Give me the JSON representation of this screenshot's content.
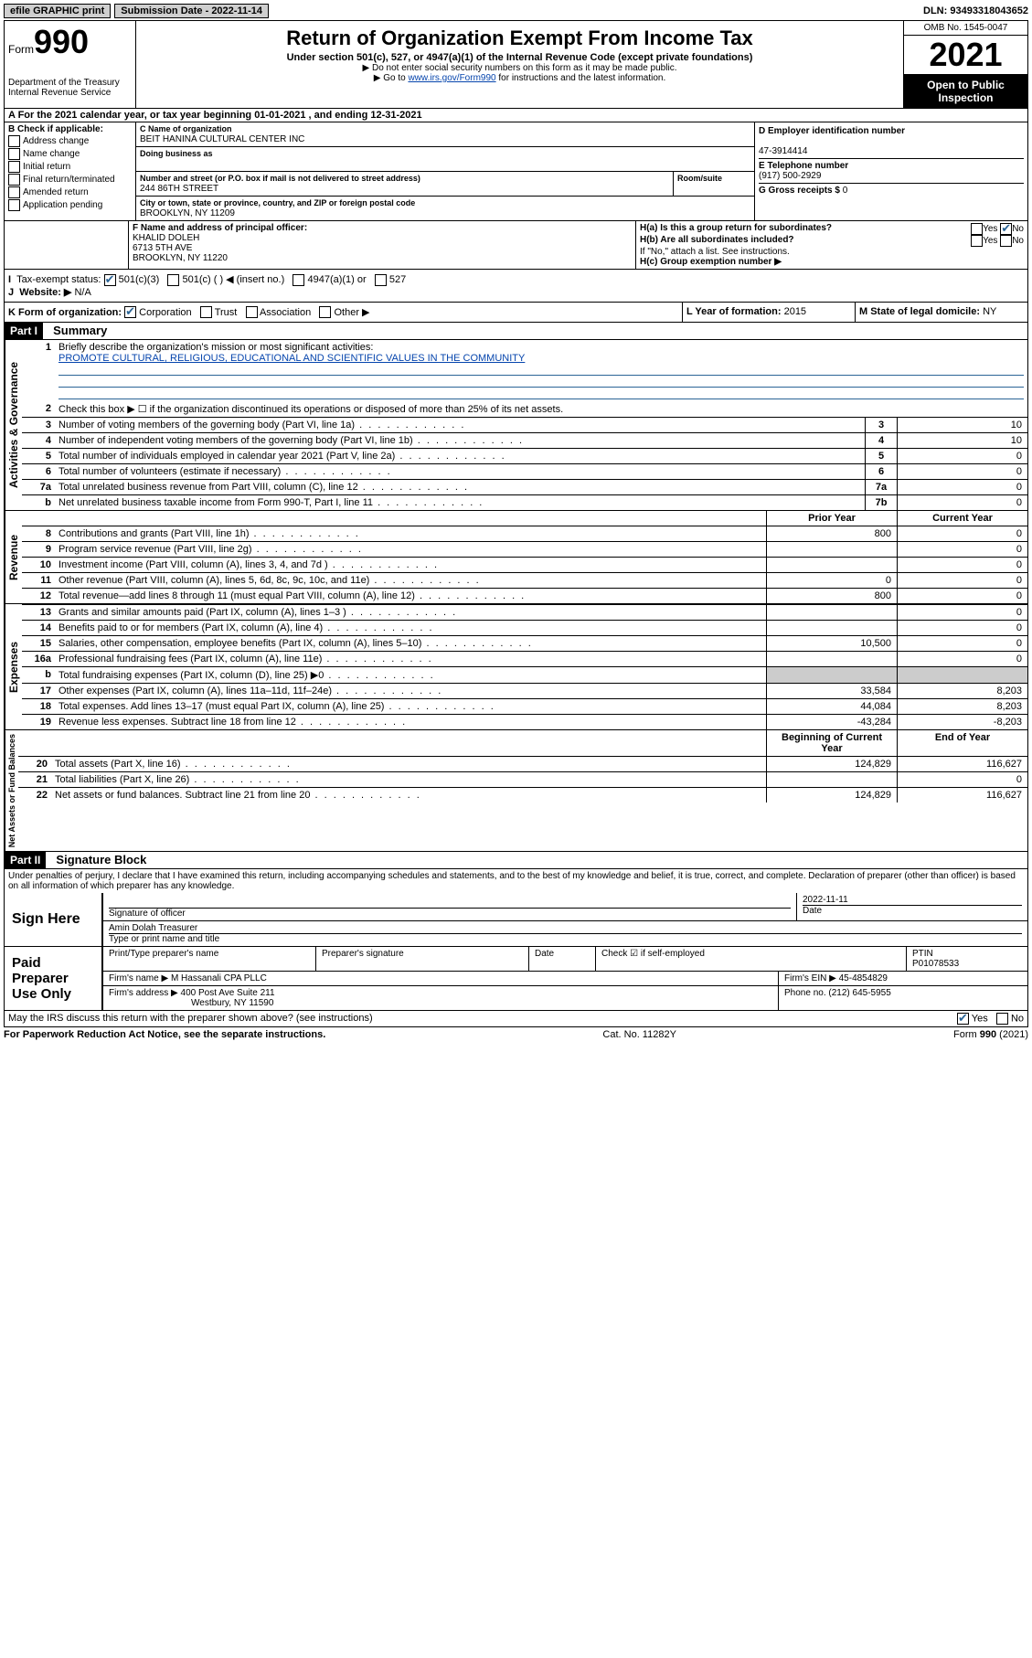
{
  "colors": {
    "link": "#0645ad",
    "inspection_bg": "#000000",
    "inspection_fg": "#ffffff",
    "shade": "#cccccc",
    "check": "#2a6496"
  },
  "topbar": {
    "efile": "efile GRAPHIC print",
    "submission_label": "Submission Date - 2022-11-14",
    "dln": "DLN: 93493318043652"
  },
  "header": {
    "form_prefix": "Form",
    "form_number": "990",
    "dept": "Department of the Treasury",
    "irs": "Internal Revenue Service",
    "title": "Return of Organization Exempt From Income Tax",
    "subtitle": "Under section 501(c), 527, or 4947(a)(1) of the Internal Revenue Code (except private foundations)",
    "note1": "▶ Do not enter social security numbers on this form as it may be made public.",
    "note2_pre": "▶ Go to ",
    "note2_link": "www.irs.gov/Form990",
    "note2_post": " for instructions and the latest information.",
    "omb": "OMB No. 1545-0047",
    "year": "2021",
    "inspection1": "Open to Public",
    "inspection2": "Inspection"
  },
  "section_a": {
    "line": "A For the 2021 calendar year, or tax year beginning 01-01-2021   , and ending 12-31-2021"
  },
  "section_b": {
    "title": "B Check if applicable:",
    "items": [
      "Address change",
      "Name change",
      "Initial return",
      "Final return/terminated",
      "Amended return",
      "Application pending"
    ]
  },
  "section_c": {
    "name_label": "C Name of organization",
    "name": "BEIT HANINA CULTURAL CENTER INC",
    "dba_label": "Doing business as",
    "dba": "",
    "addr_label": "Number and street (or P.O. box if mail is not delivered to street address)",
    "room_label": "Room/suite",
    "addr": "244 86TH STREET",
    "city_label": "City or town, state or province, country, and ZIP or foreign postal code",
    "city": "BROOKLYN, NY  11209"
  },
  "section_d": {
    "label": "D Employer identification number",
    "value": "47-3914414"
  },
  "section_e": {
    "label": "E Telephone number",
    "value": "(917) 500-2929"
  },
  "section_g": {
    "label": "G Gross receipts $",
    "value": "0"
  },
  "section_f": {
    "label": "F Name and address of principal officer:",
    "name": "KHALID DOLEH",
    "addr": "6713 5TH AVE",
    "city": "BROOKLYN, NY  11220"
  },
  "section_h": {
    "a_label": "H(a)  Is this a group return for subordinates?",
    "yes": "Yes",
    "no": "No",
    "b_label": "H(b)  Are all subordinates included?",
    "b_note": "If \"No,\" attach a list. See instructions.",
    "c_label": "H(c)  Group exemption number ▶"
  },
  "section_i": {
    "label": "Tax-exempt status:",
    "opts": [
      "501(c)(3)",
      "501(c) (   ) ◀ (insert no.)",
      "4947(a)(1) or",
      "527"
    ]
  },
  "section_j": {
    "label": "Website: ▶",
    "value": "N/A"
  },
  "section_k": {
    "label": "K Form of organization:",
    "opts": [
      "Corporation",
      "Trust",
      "Association",
      "Other ▶"
    ]
  },
  "section_l": {
    "label": "L Year of formation:",
    "value": "2015"
  },
  "section_m": {
    "label": "M State of legal domicile:",
    "value": "NY"
  },
  "part1": {
    "header": "Part I",
    "title": "Summary",
    "q1_label": "Briefly describe the organization's mission or most significant activities:",
    "q1_value": "PROMOTE CULTURAL, RELIGIOUS, EDUCATIONAL AND SCIENTIFIC VALUES IN THE COMMUNITY",
    "q2_label": "Check this box ▶ ☐  if the organization discontinued its operations or disposed of more than 25% of its net assets.",
    "vert_labels": {
      "gov": "Activities & Governance",
      "rev": "Revenue",
      "exp": "Expenses",
      "net": "Net Assets or Fund Balances"
    },
    "col_headers": {
      "prior": "Prior Year",
      "current": "Current Year",
      "begin": "Beginning of Current Year",
      "end": "End of Year"
    },
    "gov_lines": [
      {
        "n": "3",
        "t": "Number of voting members of the governing body (Part VI, line 1a)",
        "box": "3",
        "v": "10"
      },
      {
        "n": "4",
        "t": "Number of independent voting members of the governing body (Part VI, line 1b)",
        "box": "4",
        "v": "10"
      },
      {
        "n": "5",
        "t": "Total number of individuals employed in calendar year 2021 (Part V, line 2a)",
        "box": "5",
        "v": "0"
      },
      {
        "n": "6",
        "t": "Total number of volunteers (estimate if necessary)",
        "box": "6",
        "v": "0"
      },
      {
        "n": "7a",
        "t": "Total unrelated business revenue from Part VIII, column (C), line 12",
        "box": "7a",
        "v": "0"
      },
      {
        "n": "b",
        "t": "Net unrelated business taxable income from Form 990-T, Part I, line 11",
        "box": "7b",
        "v": "0"
      }
    ],
    "rev_lines": [
      {
        "n": "8",
        "t": "Contributions and grants (Part VIII, line 1h)",
        "p": "800",
        "c": "0"
      },
      {
        "n": "9",
        "t": "Program service revenue (Part VIII, line 2g)",
        "p": "",
        "c": "0"
      },
      {
        "n": "10",
        "t": "Investment income (Part VIII, column (A), lines 3, 4, and 7d )",
        "p": "",
        "c": "0"
      },
      {
        "n": "11",
        "t": "Other revenue (Part VIII, column (A), lines 5, 6d, 8c, 9c, 10c, and 11e)",
        "p": "0",
        "c": "0"
      },
      {
        "n": "12",
        "t": "Total revenue—add lines 8 through 11 (must equal Part VIII, column (A), line 12)",
        "p": "800",
        "c": "0"
      }
    ],
    "exp_lines": [
      {
        "n": "13",
        "t": "Grants and similar amounts paid (Part IX, column (A), lines 1–3 )",
        "p": "",
        "c": "0"
      },
      {
        "n": "14",
        "t": "Benefits paid to or for members (Part IX, column (A), line 4)",
        "p": "",
        "c": "0"
      },
      {
        "n": "15",
        "t": "Salaries, other compensation, employee benefits (Part IX, column (A), lines 5–10)",
        "p": "10,500",
        "c": "0"
      },
      {
        "n": "16a",
        "t": "Professional fundraising fees (Part IX, column (A), line 11e)",
        "p": "",
        "c": "0"
      },
      {
        "n": "b",
        "t": "Total fundraising expenses (Part IX, column (D), line 25) ▶0",
        "p": null,
        "c": null,
        "shaded": true
      },
      {
        "n": "17",
        "t": "Other expenses (Part IX, column (A), lines 11a–11d, 11f–24e)",
        "p": "33,584",
        "c": "8,203"
      },
      {
        "n": "18",
        "t": "Total expenses. Add lines 13–17 (must equal Part IX, column (A), line 25)",
        "p": "44,084",
        "c": "8,203"
      },
      {
        "n": "19",
        "t": "Revenue less expenses. Subtract line 18 from line 12",
        "p": "-43,284",
        "c": "-8,203"
      }
    ],
    "net_lines": [
      {
        "n": "20",
        "t": "Total assets (Part X, line 16)",
        "p": "124,829",
        "c": "116,627"
      },
      {
        "n": "21",
        "t": "Total liabilities (Part X, line 26)",
        "p": "",
        "c": "0"
      },
      {
        "n": "22",
        "t": "Net assets or fund balances. Subtract line 21 from line 20",
        "p": "124,829",
        "c": "116,627"
      }
    ]
  },
  "part2": {
    "header": "Part II",
    "title": "Signature Block",
    "declaration": "Under penalties of perjury, I declare that I have examined this return, including accompanying schedules and statements, and to the best of my knowledge and belief, it is true, correct, and complete. Declaration of preparer (other than officer) is based on all information of which preparer has any knowledge.",
    "sign_here": "Sign Here",
    "sig_officer_label": "Signature of officer",
    "date_label": "Date",
    "date_value": "2022-11-11",
    "officer_name": "Amin Dolah  Treasurer",
    "officer_name_label": "Type or print name and title",
    "paid_preparer": "Paid Preparer Use Only",
    "pp_name_label": "Print/Type preparer's name",
    "pp_sig_label": "Preparer's signature",
    "pp_date_label": "Date",
    "pp_check_label": "Check ☑ if self-employed",
    "ptin_label": "PTIN",
    "ptin": "P01078533",
    "firm_name_label": "Firm's name   ▶",
    "firm_name": "M Hassanali CPA PLLC",
    "firm_ein_label": "Firm's EIN ▶",
    "firm_ein": "45-4854829",
    "firm_addr_label": "Firm's address ▶",
    "firm_addr1": "400 Post Ave Suite 211",
    "firm_addr2": "Westbury, NY  11590",
    "phone_label": "Phone no.",
    "phone": "(212) 645-5955",
    "may_irs": "May the IRS discuss this return with the preparer shown above? (see instructions)",
    "yes": "Yes",
    "no": "No"
  },
  "footer": {
    "left": "For Paperwork Reduction Act Notice, see the separate instructions.",
    "mid": "Cat. No. 11282Y",
    "right": "Form 990 (2021)"
  }
}
